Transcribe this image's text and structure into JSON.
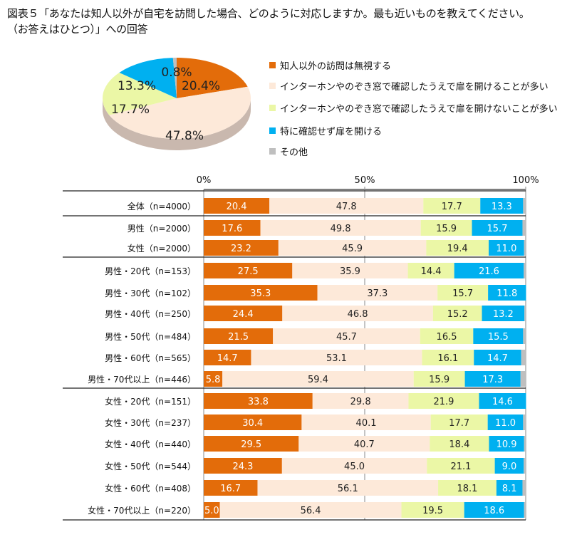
{
  "title": {
    "line1": "図表５「あなたは知人以外が自宅を訪問した場合、どのように対応しますか。最も近いものを教えてください。",
    "line2": "（お答えはひとつ）」への回答"
  },
  "colors": {
    "ignore": "#E36C0A",
    "open_after_confirm": "#FDE9D9",
    "not_open": "#EBF7A6",
    "open_without_confirm": "#00B0F0",
    "other": "#BFBFBF"
  },
  "legend": [
    {
      "label": "知人以外の訪問は無視する",
      "color": "#E36C0A"
    },
    {
      "label": "インターホンやのぞき窓で確認したうえで扉を開けることが多い",
      "color": "#FDE9D9"
    },
    {
      "label": "インターホンやのぞき窓で確認したうえで扉を開けないことが多い",
      "color": "#EBF7A6"
    },
    {
      "label": "特に確認せず扉を開ける",
      "color": "#00B0F0"
    },
    {
      "label": "その他",
      "color": "#BFBFBF"
    }
  ],
  "chart_data": [
    {
      "type": "pie",
      "style": "3d",
      "categories": [
        "知人以外の訪問は無視する",
        "インターホンやのぞき窓で確認したうえで扉を開けることが多い",
        "インターホンやのぞき窓で確認したうえで扉を開けないことが多い",
        "特に確認せず扉を開ける",
        "その他"
      ],
      "values": [
        20.4,
        47.8,
        17.7,
        13.3,
        0.8
      ],
      "labels": [
        "20.4%",
        "47.8%",
        "17.7%",
        "13.3%",
        "0.8%"
      ]
    },
    {
      "type": "bar",
      "orientation": "horizontal",
      "stacked": "100%",
      "xlim": [
        0,
        100
      ],
      "xticks": [
        "0%",
        "50%",
        "100%"
      ],
      "grid": "vertical at 50%",
      "categories": [
        "全体（n=4000）",
        "男性（n=2000）",
        "女性（n=2000）",
        "男性・20代（n=153）",
        "男性・30代（n=102）",
        "男性・40代（n=250）",
        "男性・50代（n=484）",
        "男性・60代（n=565）",
        "男性・70代以上（n=446）",
        "女性・20代（n=151）",
        "女性・30代（n=237）",
        "女性・40代（n=440）",
        "女性・50代（n=544）",
        "女性・60代（n=408）",
        "女性・70代以上（n=220）"
      ],
      "groups_separated_after": [
        0,
        2,
        8
      ],
      "series": [
        {
          "name": "知人以外の訪問は無視する",
          "values": [
            20.4,
            17.6,
            23.2,
            27.5,
            35.3,
            24.4,
            21.5,
            14.7,
            5.8,
            33.8,
            30.4,
            29.5,
            24.3,
            16.7,
            5.0
          ],
          "labels": [
            "20.4",
            "17.6",
            "23.2",
            "27.5",
            "35.3",
            "24.4",
            "21.5",
            "14.7",
            "5.8",
            "33.8",
            "30.4",
            "29.5",
            "24.3",
            "16.7",
            "5.0"
          ]
        },
        {
          "name": "インターホンやのぞき窓で確認したうえで扉を開けることが多い",
          "values": [
            47.8,
            49.8,
            45.9,
            35.9,
            37.3,
            46.8,
            45.7,
            53.1,
            59.4,
            29.8,
            40.1,
            40.7,
            45.0,
            56.1,
            56.4
          ],
          "labels": [
            "47.8",
            "49.8",
            "45.9",
            "35.9",
            "37.3",
            "46.8",
            "45.7",
            "53.1",
            "59.4",
            "29.8",
            "40.1",
            "40.7",
            "45.0",
            "56.1",
            "56.4"
          ]
        },
        {
          "name": "インターホンやのぞき窓で確認したうえで扉を開けないことが多い",
          "values": [
            17.7,
            15.9,
            19.4,
            14.4,
            15.7,
            15.2,
            16.5,
            16.1,
            15.9,
            21.9,
            17.7,
            18.4,
            21.1,
            18.1,
            19.5
          ],
          "labels": [
            "17.7",
            "15.9",
            "19.4",
            "14.4",
            "15.7",
            "15.2",
            "16.5",
            "16.1",
            "15.9",
            "21.9",
            "17.7",
            "18.4",
            "21.1",
            "18.1",
            "19.5"
          ]
        },
        {
          "name": "特に確認せず扉を開ける",
          "values": [
            13.3,
            15.7,
            11.0,
            21.6,
            11.8,
            13.2,
            15.5,
            14.7,
            17.3,
            14.6,
            11.0,
            10.9,
            9.0,
            8.1,
            18.6
          ],
          "labels": [
            "13.3",
            "15.7",
            "11.0",
            "21.6",
            "11.8",
            "13.2",
            "15.5",
            "14.7",
            "17.3",
            "14.6",
            "11.0",
            "10.9",
            "9.0",
            "8.1",
            "18.6"
          ]
        },
        {
          "name": "その他",
          "values": [
            0.8,
            1.0,
            0.5,
            0.6,
            0.0,
            0.4,
            0.8,
            1.4,
            1.6,
            0.0,
            0.8,
            0.5,
            0.6,
            1.0,
            0.5
          ]
        }
      ]
    }
  ]
}
